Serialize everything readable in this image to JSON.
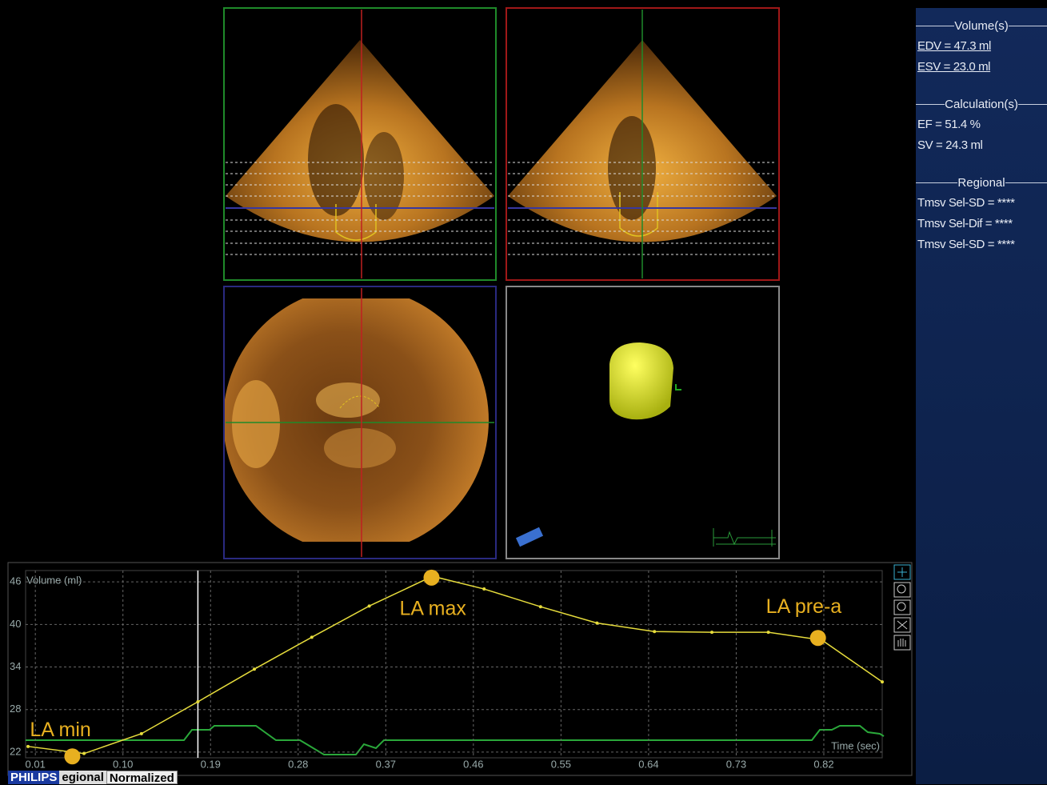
{
  "sidebar": {
    "sections": [
      {
        "heading": "Volume(s)",
        "items": [
          "EDV = 47.3 ml",
          "ESV = 23.0 ml"
        ]
      },
      {
        "heading": "Calculation(s)",
        "items": [
          "EF = 51.4 %",
          "SV = 24.3 ml"
        ]
      },
      {
        "heading": "Regional",
        "items": [
          "Tmsv Sel-SD = ****",
          "Tmsv Sel-Dif = ****",
          "Tmsv Sel-SD = ****"
        ]
      }
    ]
  },
  "chart_data": {
    "type": "line",
    "y_label": "Volume (ml)",
    "x_label": "Time (sec)",
    "x": [
      0.0025,
      0.06,
      0.119,
      0.177,
      0.235,
      0.294,
      0.353,
      0.418,
      0.471,
      0.529,
      0.587,
      0.646,
      0.705,
      0.763,
      0.818,
      0.88
    ],
    "values": [
      22.8,
      21.8,
      24.6,
      29.1,
      33.7,
      38.2,
      42.6,
      46.8,
      45.0,
      42.5,
      40.2,
      39.0,
      38.9,
      38.9,
      37.8,
      31.9
    ],
    "color": "#e6dc3c",
    "xlim": [
      0,
      0.88
    ],
    "ylim": [
      21.2,
      47.6
    ],
    "xticks": [
      0.01,
      {
        "value": 0.1,
        "label": "0.10"
      },
      0.19,
      0.28,
      0.37,
      0.46,
      0.55,
      0.64,
      0.73,
      0.82
    ],
    "yticks": [
      22,
      28,
      34,
      40,
      46
    ],
    "grid": true,
    "cursor": 0.177,
    "annotations": [
      {
        "text": "LA min",
        "x": 0.048,
        "y": 21.4
      },
      {
        "text": "LA max",
        "x": 0.417,
        "y": 46.6
      },
      {
        "text": "LA pre-a",
        "x": 0.814,
        "y": 38.1
      }
    ],
    "annotation_color": "#e8b020"
  },
  "logo": "PHILIPS",
  "tabs": [
    "egional",
    "Normalized"
  ]
}
